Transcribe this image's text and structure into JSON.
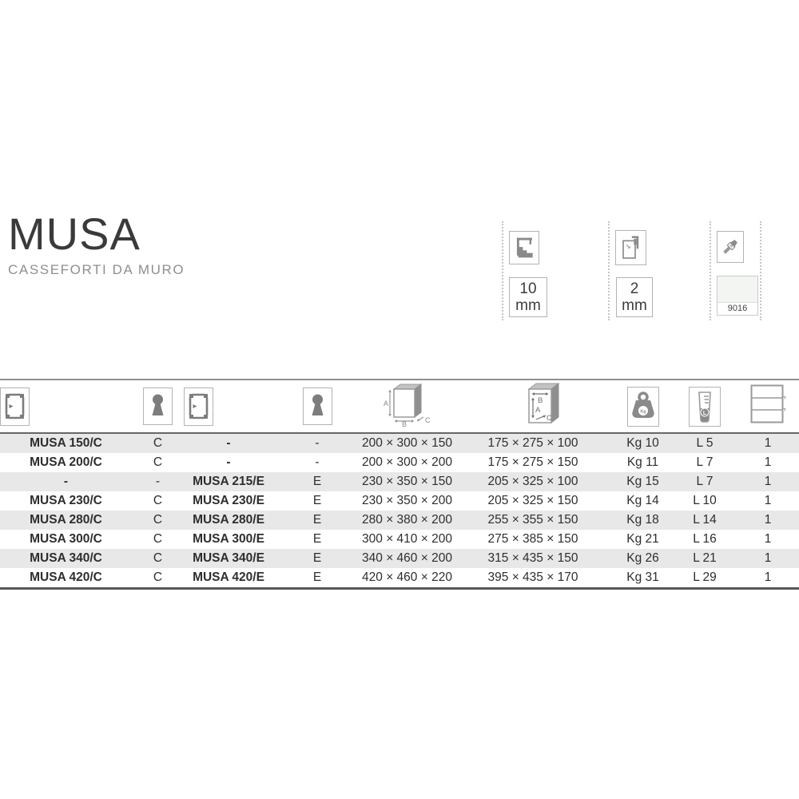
{
  "title": "MUSA",
  "subtitle": "CASSEFORTI DA MURO",
  "spec_badges": {
    "door_thickness": {
      "icon": "caliper-door-thickness-icon",
      "value": "10",
      "unit": "mm"
    },
    "body_thickness": {
      "icon": "caliper-body-thickness-icon",
      "value": "2",
      "unit": "mm"
    },
    "paint": {
      "icon": "paintbrush-icon",
      "ral_code": "9016",
      "swatch_color": "#f3f5f2"
    }
  },
  "table": {
    "column_icons": [
      "safe-door-key-model-icon",
      "keyhole-icon",
      "safe-door-electronic-model-icon",
      "keyhole-icon",
      "external-dimensions-icon",
      "internal-dimensions-icon",
      "weight-kg-icon",
      "capacity-litres-icon",
      "shelves-icon"
    ],
    "icon_labels": {
      "ext_dims": {
        "a": "A",
        "b": "B",
        "c": "C"
      },
      "int_dims": {
        "a": "A",
        "b": "B",
        "c": "C"
      },
      "weight": "Kg",
      "capacity": "L"
    },
    "rows": [
      {
        "model_c": "MUSA 150/C",
        "lock_c": "C",
        "model_e": "-",
        "lock_e": "-",
        "dim_ext": "200 × 300 × 150",
        "dim_int": "175 × 275 × 100",
        "weight": "Kg 10",
        "capacity": "L 5",
        "shelves": "1"
      },
      {
        "model_c": "MUSA 200/C",
        "lock_c": "C",
        "model_e": "-",
        "lock_e": "-",
        "dim_ext": "200 × 300 × 200",
        "dim_int": "175 × 275 × 150",
        "weight": "Kg 11",
        "capacity": "L 7",
        "shelves": "1"
      },
      {
        "model_c": "-",
        "lock_c": "-",
        "model_e": "MUSA 215/E",
        "lock_e": "E",
        "dim_ext": "230 × 350 × 150",
        "dim_int": "205 × 325 × 100",
        "weight": "Kg 15",
        "capacity": "L 7",
        "shelves": "1"
      },
      {
        "model_c": "MUSA 230/C",
        "lock_c": "C",
        "model_e": "MUSA 230/E",
        "lock_e": "E",
        "dim_ext": "230 × 350 × 200",
        "dim_int": "205 × 325 × 150",
        "weight": "Kg 14",
        "capacity": "L 10",
        "shelves": "1"
      },
      {
        "model_c": "MUSA 280/C",
        "lock_c": "C",
        "model_e": "MUSA 280/E",
        "lock_e": "E",
        "dim_ext": "280 × 380 × 200",
        "dim_int": "255 × 355 × 150",
        "weight": "Kg 18",
        "capacity": "L 14",
        "shelves": "1"
      },
      {
        "model_c": "MUSA 300/C",
        "lock_c": "C",
        "model_e": "MUSA 300/E",
        "lock_e": "E",
        "dim_ext": "300 × 410 × 200",
        "dim_int": "275 × 385 × 150",
        "weight": "Kg 21",
        "capacity": "L 16",
        "shelves": "1"
      },
      {
        "model_c": "MUSA 340/C",
        "lock_c": "C",
        "model_e": "MUSA 340/E",
        "lock_e": "E",
        "dim_ext": "340 × 460 × 200",
        "dim_int": "315 × 435 × 150",
        "weight": "Kg 26",
        "capacity": "L 21",
        "shelves": "1"
      },
      {
        "model_c": "MUSA 420/C",
        "lock_c": "C",
        "model_e": "MUSA 420/E",
        "lock_e": "E",
        "dim_ext": "420 × 460 × 220",
        "dim_int": "395 × 435 × 170",
        "weight": "Kg 31",
        "capacity": "L 29",
        "shelves": "1"
      }
    ]
  }
}
